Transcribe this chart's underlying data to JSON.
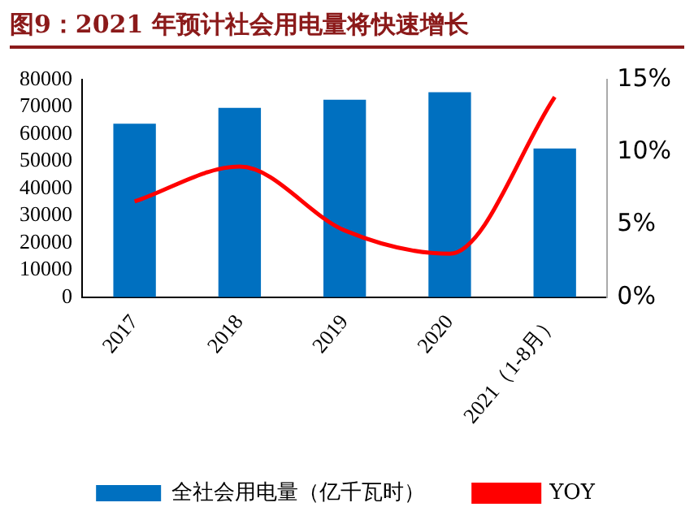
{
  "chart_data": {
    "type": "bar",
    "title": "图9：2021 年预计社会用电量将快速增长",
    "categories": [
      "2017",
      "2018",
      "2019",
      "2020",
      "2021（1-8月）"
    ],
    "series": [
      {
        "name": "全社会用电量（亿千瓦时）",
        "color": "#0070c0",
        "values": [
          63800,
          69600,
          72600,
          75400,
          54700
        ]
      },
      {
        "name": "YOY",
        "type": "line",
        "axis": "y2",
        "color": "#ff0000",
        "values": [
          6.6,
          9.0,
          4.6,
          3.0,
          13.8
        ]
      }
    ],
    "ylim": [
      0,
      80000
    ],
    "yticks": [
      0,
      10000,
      20000,
      30000,
      40000,
      50000,
      60000,
      70000,
      80000
    ],
    "y2lim": [
      0,
      15
    ],
    "y2ticks": [
      {
        "value": 0,
        "label": "0%"
      },
      {
        "value": 5,
        "label": "5%"
      },
      {
        "value": 10,
        "label": "10%"
      },
      {
        "value": 15,
        "label": "15%"
      }
    ],
    "grid": false,
    "legend": "bottom",
    "marker": "none"
  }
}
